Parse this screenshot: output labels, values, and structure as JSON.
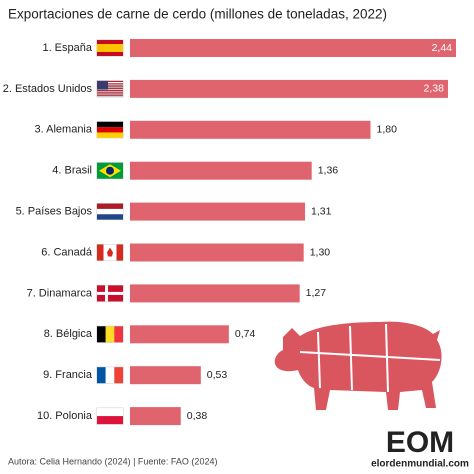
{
  "chart_data": {
    "type": "bar",
    "orientation": "horizontal",
    "title": "Exportaciones de carne de cerdo (millones de toneladas, 2022)",
    "categories": [
      "1. España",
      "2. Estados Unidos",
      "3. Alemania",
      "4. Brasil",
      "5. Países Bajos",
      "6. Canadá",
      "7. Dinamarca",
      "8. Bélgica",
      "9. Francia",
      "10. Polonia"
    ],
    "values": [
      2.44,
      2.38,
      1.8,
      1.36,
      1.31,
      1.3,
      1.27,
      0.74,
      0.53,
      0.38
    ],
    "value_labels": [
      "2,44",
      "2,38",
      "1,80",
      "1,36",
      "1,31",
      "1,30",
      "1,27",
      "0,74",
      "0,53",
      "0,38"
    ],
    "color": "#e0646e",
    "source": "Autora: Celia Hernando (2024) | Fuente: FAO (2024)",
    "logo_text": "EOM",
    "logo_url": "elordenmundial.com"
  }
}
